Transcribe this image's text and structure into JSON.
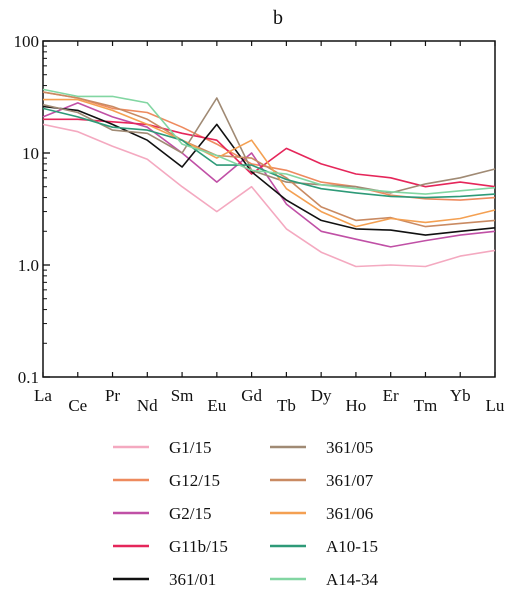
{
  "chart_data": {
    "type": "line",
    "title": "b",
    "y_scale": "log",
    "ylim": [
      0.1,
      100
    ],
    "y_ticks": [
      "100",
      "10",
      "1.0",
      "0.1"
    ],
    "categories": [
      "La",
      "Ce",
      "Pr",
      "Nd",
      "Sm",
      "Eu",
      "Gd",
      "Tb",
      "Dy",
      "Ho",
      "Er",
      "Tm",
      "Yb",
      "Lu"
    ],
    "legend_position": "bottom",
    "series": [
      {
        "name": "G1/15",
        "color": "#f4a9c0",
        "values": [
          18,
          15.5,
          11.5,
          8.8,
          5,
          3,
          5,
          2.1,
          1.3,
          0.97,
          1.0,
          0.97,
          1.2,
          1.35
        ]
      },
      {
        "name": "G12/15",
        "color": "#ee8a5e",
        "values": [
          35,
          31,
          25,
          23,
          17,
          12,
          8,
          7,
          5.5,
          5,
          4.2,
          3.9,
          3.8,
          4
        ]
      },
      {
        "name": "G2/15",
        "color": "#c050a6",
        "values": [
          21,
          28,
          21,
          17,
          10,
          5.5,
          10,
          3.5,
          2,
          1.7,
          1.45,
          1.65,
          1.85,
          2
        ]
      },
      {
        "name": "G11b/15",
        "color": "#e5265a",
        "values": [
          20,
          20,
          19,
          18,
          15,
          13,
          6.5,
          11,
          8,
          6.5,
          6,
          5,
          5.5,
          5
        ]
      },
      {
        "name": "361/01",
        "color": "#111111",
        "values": [
          26,
          24,
          18,
          13,
          7.5,
          18,
          6.8,
          3.8,
          2.5,
          2.1,
          2.05,
          1.85,
          2,
          2.15
        ]
      },
      {
        "name": "361/05",
        "color": "#a08a74",
        "values": [
          27,
          23,
          16,
          15,
          10,
          31,
          7,
          5.5,
          5.2,
          5,
          4.4,
          5.3,
          6,
          7.2
        ]
      },
      {
        "name": "361/07",
        "color": "#c98a62",
        "values": [
          35,
          31,
          26,
          20,
          13,
          9.5,
          9,
          6,
          3.3,
          2.5,
          2.65,
          2.2,
          2.35,
          2.5
        ]
      },
      {
        "name": "361/06",
        "color": "#f4a052",
        "values": [
          30,
          30,
          24,
          18,
          13,
          9,
          13,
          4.8,
          3,
          2.2,
          2.6,
          2.4,
          2.6,
          3.1
        ]
      },
      {
        "name": "A10-15",
        "color": "#2e9a78",
        "values": [
          25,
          21,
          17,
          16,
          13,
          7.8,
          7.8,
          5.8,
          4.8,
          4.4,
          4.1,
          4.0,
          4.1,
          4.3
        ]
      },
      {
        "name": "A14-34",
        "color": "#82d6a2",
        "values": [
          37,
          32,
          32,
          28,
          12,
          9.5,
          7,
          6.5,
          5.2,
          4.8,
          4.5,
          4.3,
          4.6,
          4.9
        ]
      }
    ]
  }
}
